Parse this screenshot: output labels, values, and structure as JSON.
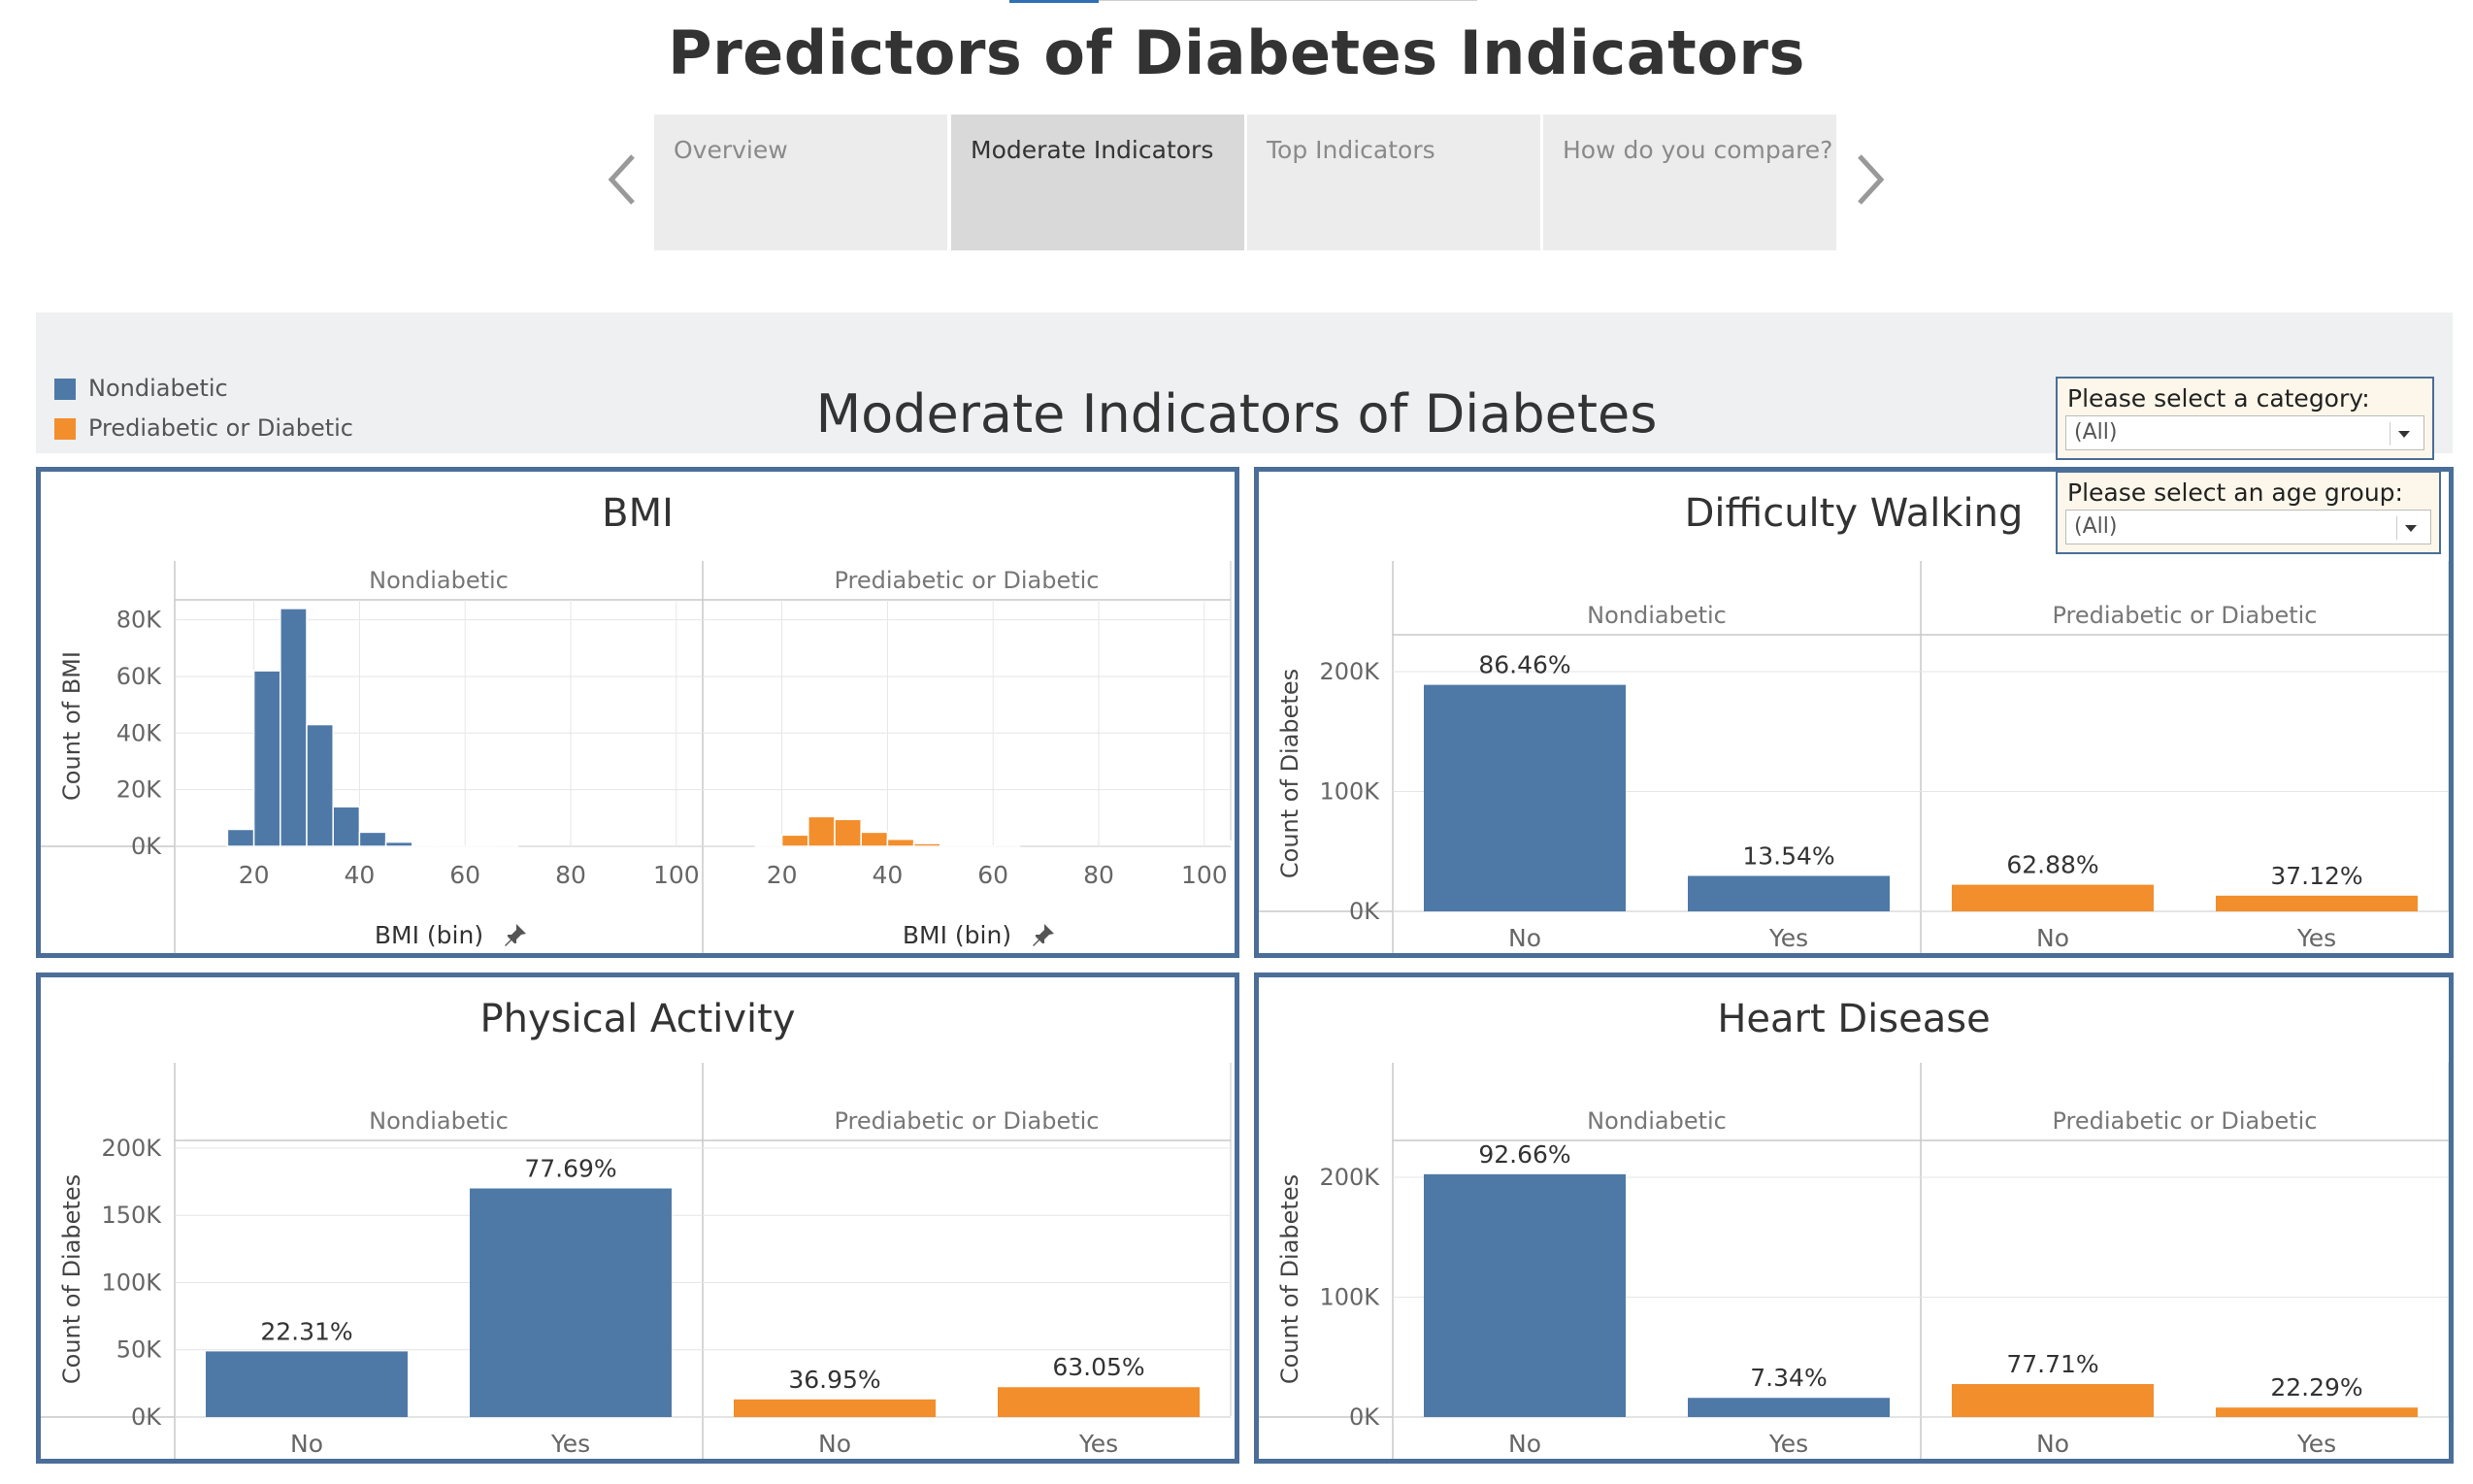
{
  "page": {
    "title": "Predictors of Diabetes Indicators",
    "section_title": "Moderate Indicators of Diabetes"
  },
  "nav": {
    "tabs": [
      {
        "label": "Overview",
        "active": false
      },
      {
        "label": "Moderate Indicators",
        "active": true
      },
      {
        "label": "Top Indicators",
        "active": false
      },
      {
        "label": "How do you compare?",
        "active": false
      }
    ]
  },
  "legend": {
    "items": [
      {
        "label": "Nondiabetic",
        "color": "#4e79a7"
      },
      {
        "label": "Prediabetic or Diabetic",
        "color": "#f28e2b"
      }
    ]
  },
  "filters": {
    "category": {
      "label": "Please select a category:",
      "value": "(All)"
    },
    "age_group": {
      "label": "Please select an age group:",
      "value": "(All)"
    }
  },
  "colors": {
    "nondiabetic": "#4e79a7",
    "prediabetic": "#f28e2b",
    "panel_border": "#4a6e98"
  },
  "chart_data": [
    {
      "type": "bar",
      "title": "BMI",
      "facets": [
        "Nondiabetic",
        "Prediabetic or Diabetic"
      ],
      "xlabel": "BMI (bin)",
      "ylabel": "Count of BMI",
      "xticks": [
        20,
        40,
        60,
        80,
        100
      ],
      "yticks": [
        "0K",
        "20K",
        "40K",
        "60K",
        "80K"
      ],
      "ylim": [
        0,
        85000
      ],
      "bin_start": 10,
      "bin_width": 5,
      "series": [
        {
          "name": "Nondiabetic",
          "values": [
            0,
            6000,
            62000,
            84000,
            43000,
            14000,
            5000,
            1500,
            500,
            200,
            100,
            50,
            0,
            0,
            0,
            0,
            0,
            0
          ]
        },
        {
          "name": "Prediabetic or Diabetic",
          "values": [
            0,
            400,
            4000,
            10500,
            9500,
            5000,
            2500,
            1000,
            400,
            150,
            50,
            0,
            0,
            0,
            0,
            0,
            0,
            0
          ]
        }
      ]
    },
    {
      "type": "bar",
      "title": "Difficulty Walking",
      "facets": [
        "Nondiabetic",
        "Prediabetic or Diabetic"
      ],
      "categories": [
        "No",
        "Yes"
      ],
      "ylabel": "Count of Diabetes",
      "yticks": [
        "0K",
        "100K",
        "200K"
      ],
      "ylim": [
        0,
        230000
      ],
      "series": [
        {
          "name": "Nondiabetic",
          "values": [
            189000,
            29600
          ],
          "labels": [
            "86.46%",
            "13.54%"
          ]
        },
        {
          "name": "Prediabetic or Diabetic",
          "values": [
            22200,
            13100
          ],
          "labels": [
            "62.88%",
            "37.12%"
          ]
        }
      ]
    },
    {
      "type": "bar",
      "title": "Physical Activity",
      "facets": [
        "Nondiabetic",
        "Prediabetic or Diabetic"
      ],
      "categories": [
        "No",
        "Yes"
      ],
      "ylabel": "Count of Diabetes",
      "yticks": [
        "0K",
        "50K",
        "100K",
        "150K",
        "200K"
      ],
      "ylim": [
        0,
        205000
      ],
      "series": [
        {
          "name": "Nondiabetic",
          "values": [
            48800,
            170000
          ],
          "labels": [
            "22.31%",
            "77.69%"
          ]
        },
        {
          "name": "Prediabetic or Diabetic",
          "values": [
            13100,
            22200
          ],
          "labels": [
            "36.95%",
            "63.05%"
          ]
        }
      ]
    },
    {
      "type": "bar",
      "title": "Heart Disease",
      "facets": [
        "Nondiabetic",
        "Prediabetic or Diabetic"
      ],
      "categories": [
        "No",
        "Yes"
      ],
      "ylabel": "Count of Diabetes",
      "yticks": [
        "0K",
        "100K",
        "200K"
      ],
      "ylim": [
        0,
        230000
      ],
      "series": [
        {
          "name": "Nondiabetic",
          "values": [
            202600,
            16000
          ],
          "labels": [
            "92.66%",
            "7.34%"
          ]
        },
        {
          "name": "Prediabetic or Diabetic",
          "values": [
            27500,
            7900
          ],
          "labels": [
            "77.71%",
            "22.29%"
          ]
        }
      ]
    }
  ]
}
